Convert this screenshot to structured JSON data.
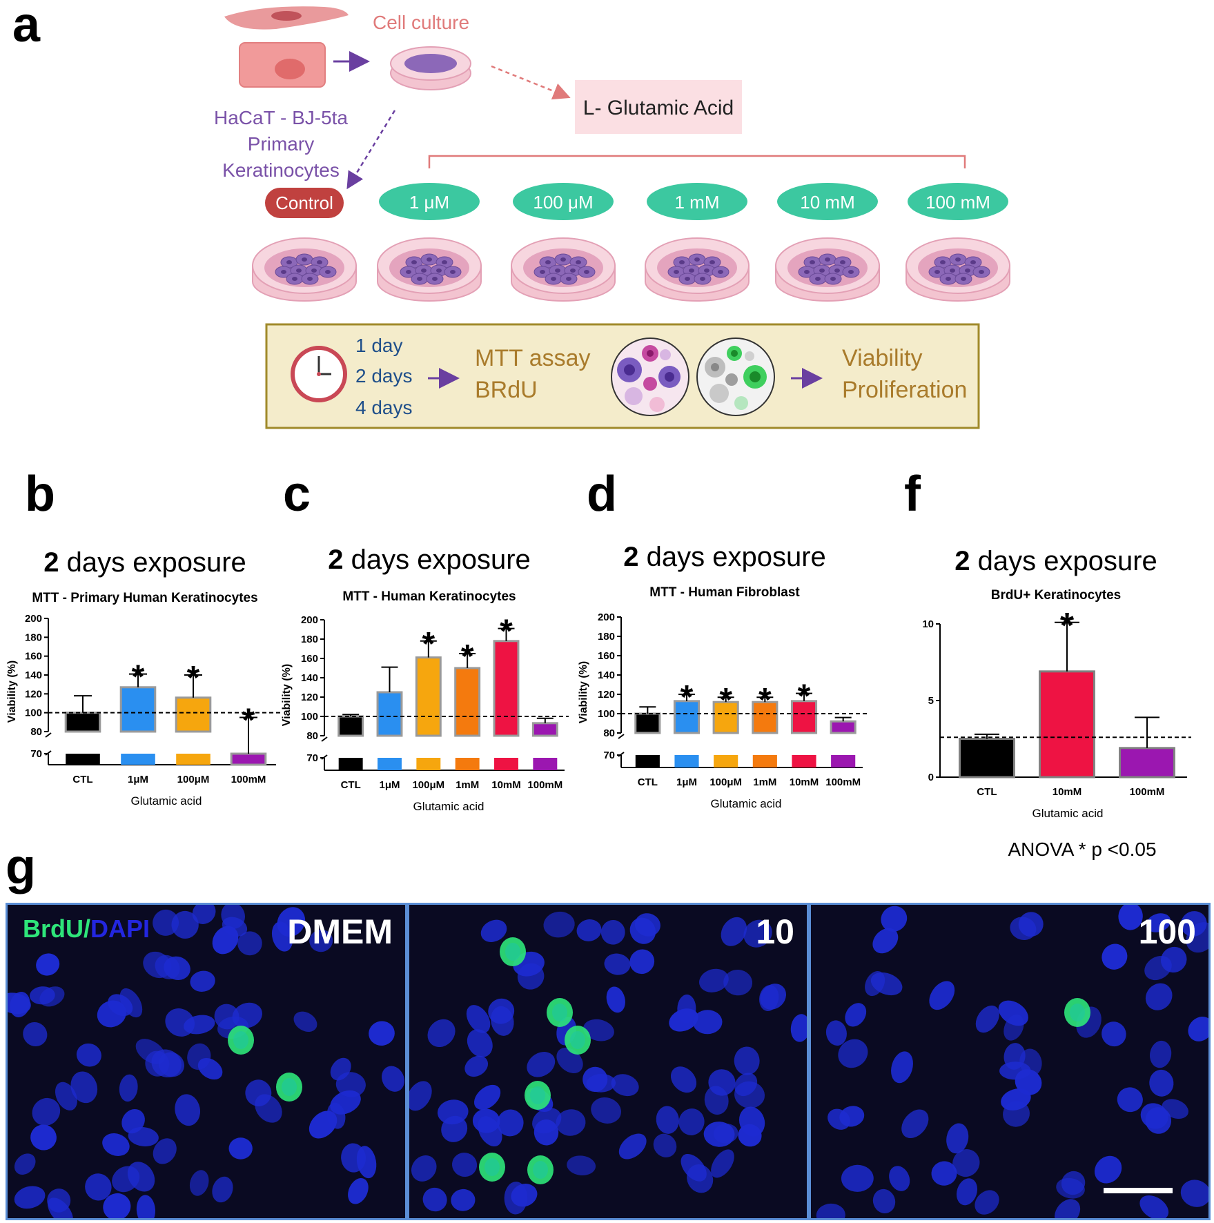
{
  "panels": {
    "a": "a",
    "b": "b",
    "c": "c",
    "d": "d",
    "f": "f",
    "g": "g"
  },
  "schematic": {
    "cell_culture": "Cell culture",
    "cell_lines": [
      "HaCaT - BJ-5ta",
      "Primary",
      "Keratinocytes"
    ],
    "treatment": "L- Glutamic Acid",
    "control": "Control",
    "doses": [
      "1 μM",
      "100 μM",
      "1 mM",
      "10 mM",
      "100 mM"
    ],
    "timepoints": [
      "1 day",
      "2 days",
      "4 days"
    ],
    "assays": [
      "MTT assay",
      "BRdU"
    ],
    "readouts": [
      "Viability",
      "Proliferation"
    ],
    "colors": {
      "control": "#c0413f",
      "dose": "#3cc8a0",
      "box_fill": "#f4eccb",
      "box_border": "#a08a2a",
      "assay_text": "#a97b2b",
      "time_text": "#1f4f8a",
      "arrow": "#6a3fa0"
    }
  },
  "chart_data": [
    {
      "panel": "b",
      "type": "bar",
      "title_num": "2",
      "title_rest": " days exposure",
      "subtitle": "MTT - Primary Human Keratinocytes",
      "ylabel": "Viability (%)",
      "xlabel": "Glutamic acid",
      "categories": [
        "CTL",
        "1μM",
        "100μM",
        "100mM"
      ],
      "values": [
        100,
        127,
        116,
        69
      ],
      "errors": [
        18,
        14,
        24,
        26
      ],
      "significant": [
        false,
        true,
        true,
        true
      ],
      "colors": [
        "#000000",
        "#2a8ff0",
        "#f6a60e",
        "#9b17b0"
      ],
      "y_ticks": [
        70,
        80,
        100,
        120,
        140,
        160,
        180,
        200
      ],
      "axis_break": [
        70,
        80
      ],
      "reference_line": 100
    },
    {
      "panel": "c",
      "type": "bar",
      "title_num": "2",
      "title_rest": " days exposure",
      "subtitle": "MTT - Human Keratinocytes",
      "ylabel": "Viability (%)",
      "xlabel": "Glutamic acid",
      "categories": [
        "CTL",
        "1μM",
        "100μM",
        "1mM",
        "10mM",
        "100mM"
      ],
      "values": [
        100,
        125,
        161,
        150,
        178,
        93
      ],
      "errors": [
        2,
        26,
        17,
        15,
        13,
        5
      ],
      "significant": [
        false,
        false,
        true,
        true,
        true,
        false
      ],
      "colors": [
        "#000000",
        "#2a8ff0",
        "#f6a60e",
        "#f47a0e",
        "#ee1343",
        "#9b17b0"
      ],
      "y_ticks": [
        70,
        80,
        100,
        120,
        140,
        160,
        180,
        200
      ],
      "axis_break": [
        70,
        80
      ],
      "reference_line": 100
    },
    {
      "panel": "d",
      "type": "bar",
      "title_num": "2",
      "title_rest": " days exposure",
      "subtitle": "MTT - Human Fibroblast",
      "ylabel": "Viability (%)",
      "xlabel": "Glutamic acid",
      "categories": [
        "CTL",
        "1μM",
        "100μM",
        "1mM",
        "10mM",
        "100mM"
      ],
      "values": [
        100,
        113,
        112,
        112,
        113,
        92
      ],
      "errors": [
        7,
        7,
        5,
        5,
        8,
        4
      ],
      "significant": [
        false,
        true,
        true,
        true,
        true,
        false
      ],
      "colors": [
        "#000000",
        "#2a8ff0",
        "#f6a60e",
        "#f47a0e",
        "#ee1343",
        "#9b17b0"
      ],
      "y_ticks": [
        70,
        80,
        100,
        120,
        140,
        160,
        180,
        200
      ],
      "axis_break": [
        70,
        80
      ],
      "reference_line": 100
    },
    {
      "panel": "f",
      "type": "bar",
      "title_num": "2",
      "title_rest": " days exposure",
      "subtitle": "BrdU+ Keratinocytes",
      "xlabel": "Glutamic acid",
      "categories": [
        "CTL",
        "10mM",
        "100mM"
      ],
      "values": [
        2.5,
        6.9,
        1.9
      ],
      "errors": [
        0.3,
        3.2,
        2.0
      ],
      "significant": [
        false,
        true,
        false
      ],
      "colors": [
        "#000000",
        "#ee1343",
        "#9b17b0"
      ],
      "y_ticks": [
        0,
        5,
        10
      ],
      "ylim": [
        0,
        10
      ],
      "reference_line": 2.6,
      "note": "ANOVA * p <0.05"
    }
  ],
  "micrographs": {
    "stain_brdu": "BrdU",
    "stain_sep": "/",
    "stain_dapi": "DAPI",
    "labels": [
      "DMEM",
      "10",
      "100"
    ],
    "colors": {
      "brdu": "#2ee67a",
      "dapi": "#2326e0",
      "nucleus": "#1d2bd0"
    }
  }
}
